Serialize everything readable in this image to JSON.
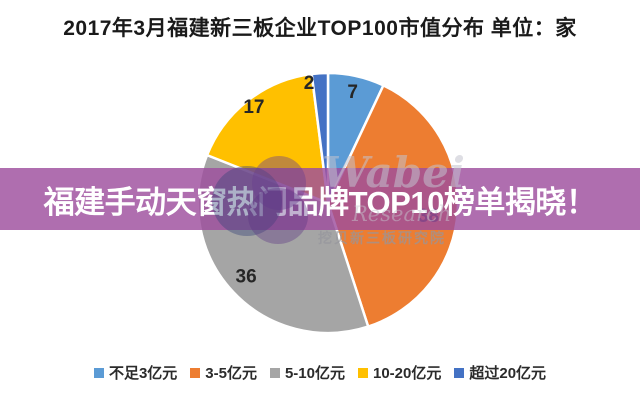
{
  "title": "2017年3月福建新三板企业TOP100市值分布  单位：家",
  "banner": {
    "text": "福建手动天窗热门品牌TOP10榜单揭晓！",
    "overlay_color": "rgba(157, 78, 158, 0.82)",
    "text_color": "#ffffff"
  },
  "watermark": {
    "brand": "Wabei",
    "sub": "Research",
    "cn": "挖贝新三板研究院"
  },
  "chart_data": {
    "type": "pie",
    "title": "2017年3月福建新三板企业TOP100市值分布",
    "unit": "单位：家",
    "categories": [
      "不足3亿元",
      "3-5亿元",
      "5-10亿元",
      "10-20亿元",
      "超过20亿元"
    ],
    "values": [
      7,
      38,
      36,
      17,
      2
    ],
    "colors": [
      "#5B9BD5",
      "#ED7D31",
      "#A5A5A5",
      "#FFC000",
      "#4472C4"
    ],
    "total": 100,
    "start_angle_deg": 0,
    "direction": "clockwise",
    "legend_position": "bottom",
    "data_labels": true,
    "label_color": "#262626",
    "slice_gap_color": "#ffffff"
  }
}
